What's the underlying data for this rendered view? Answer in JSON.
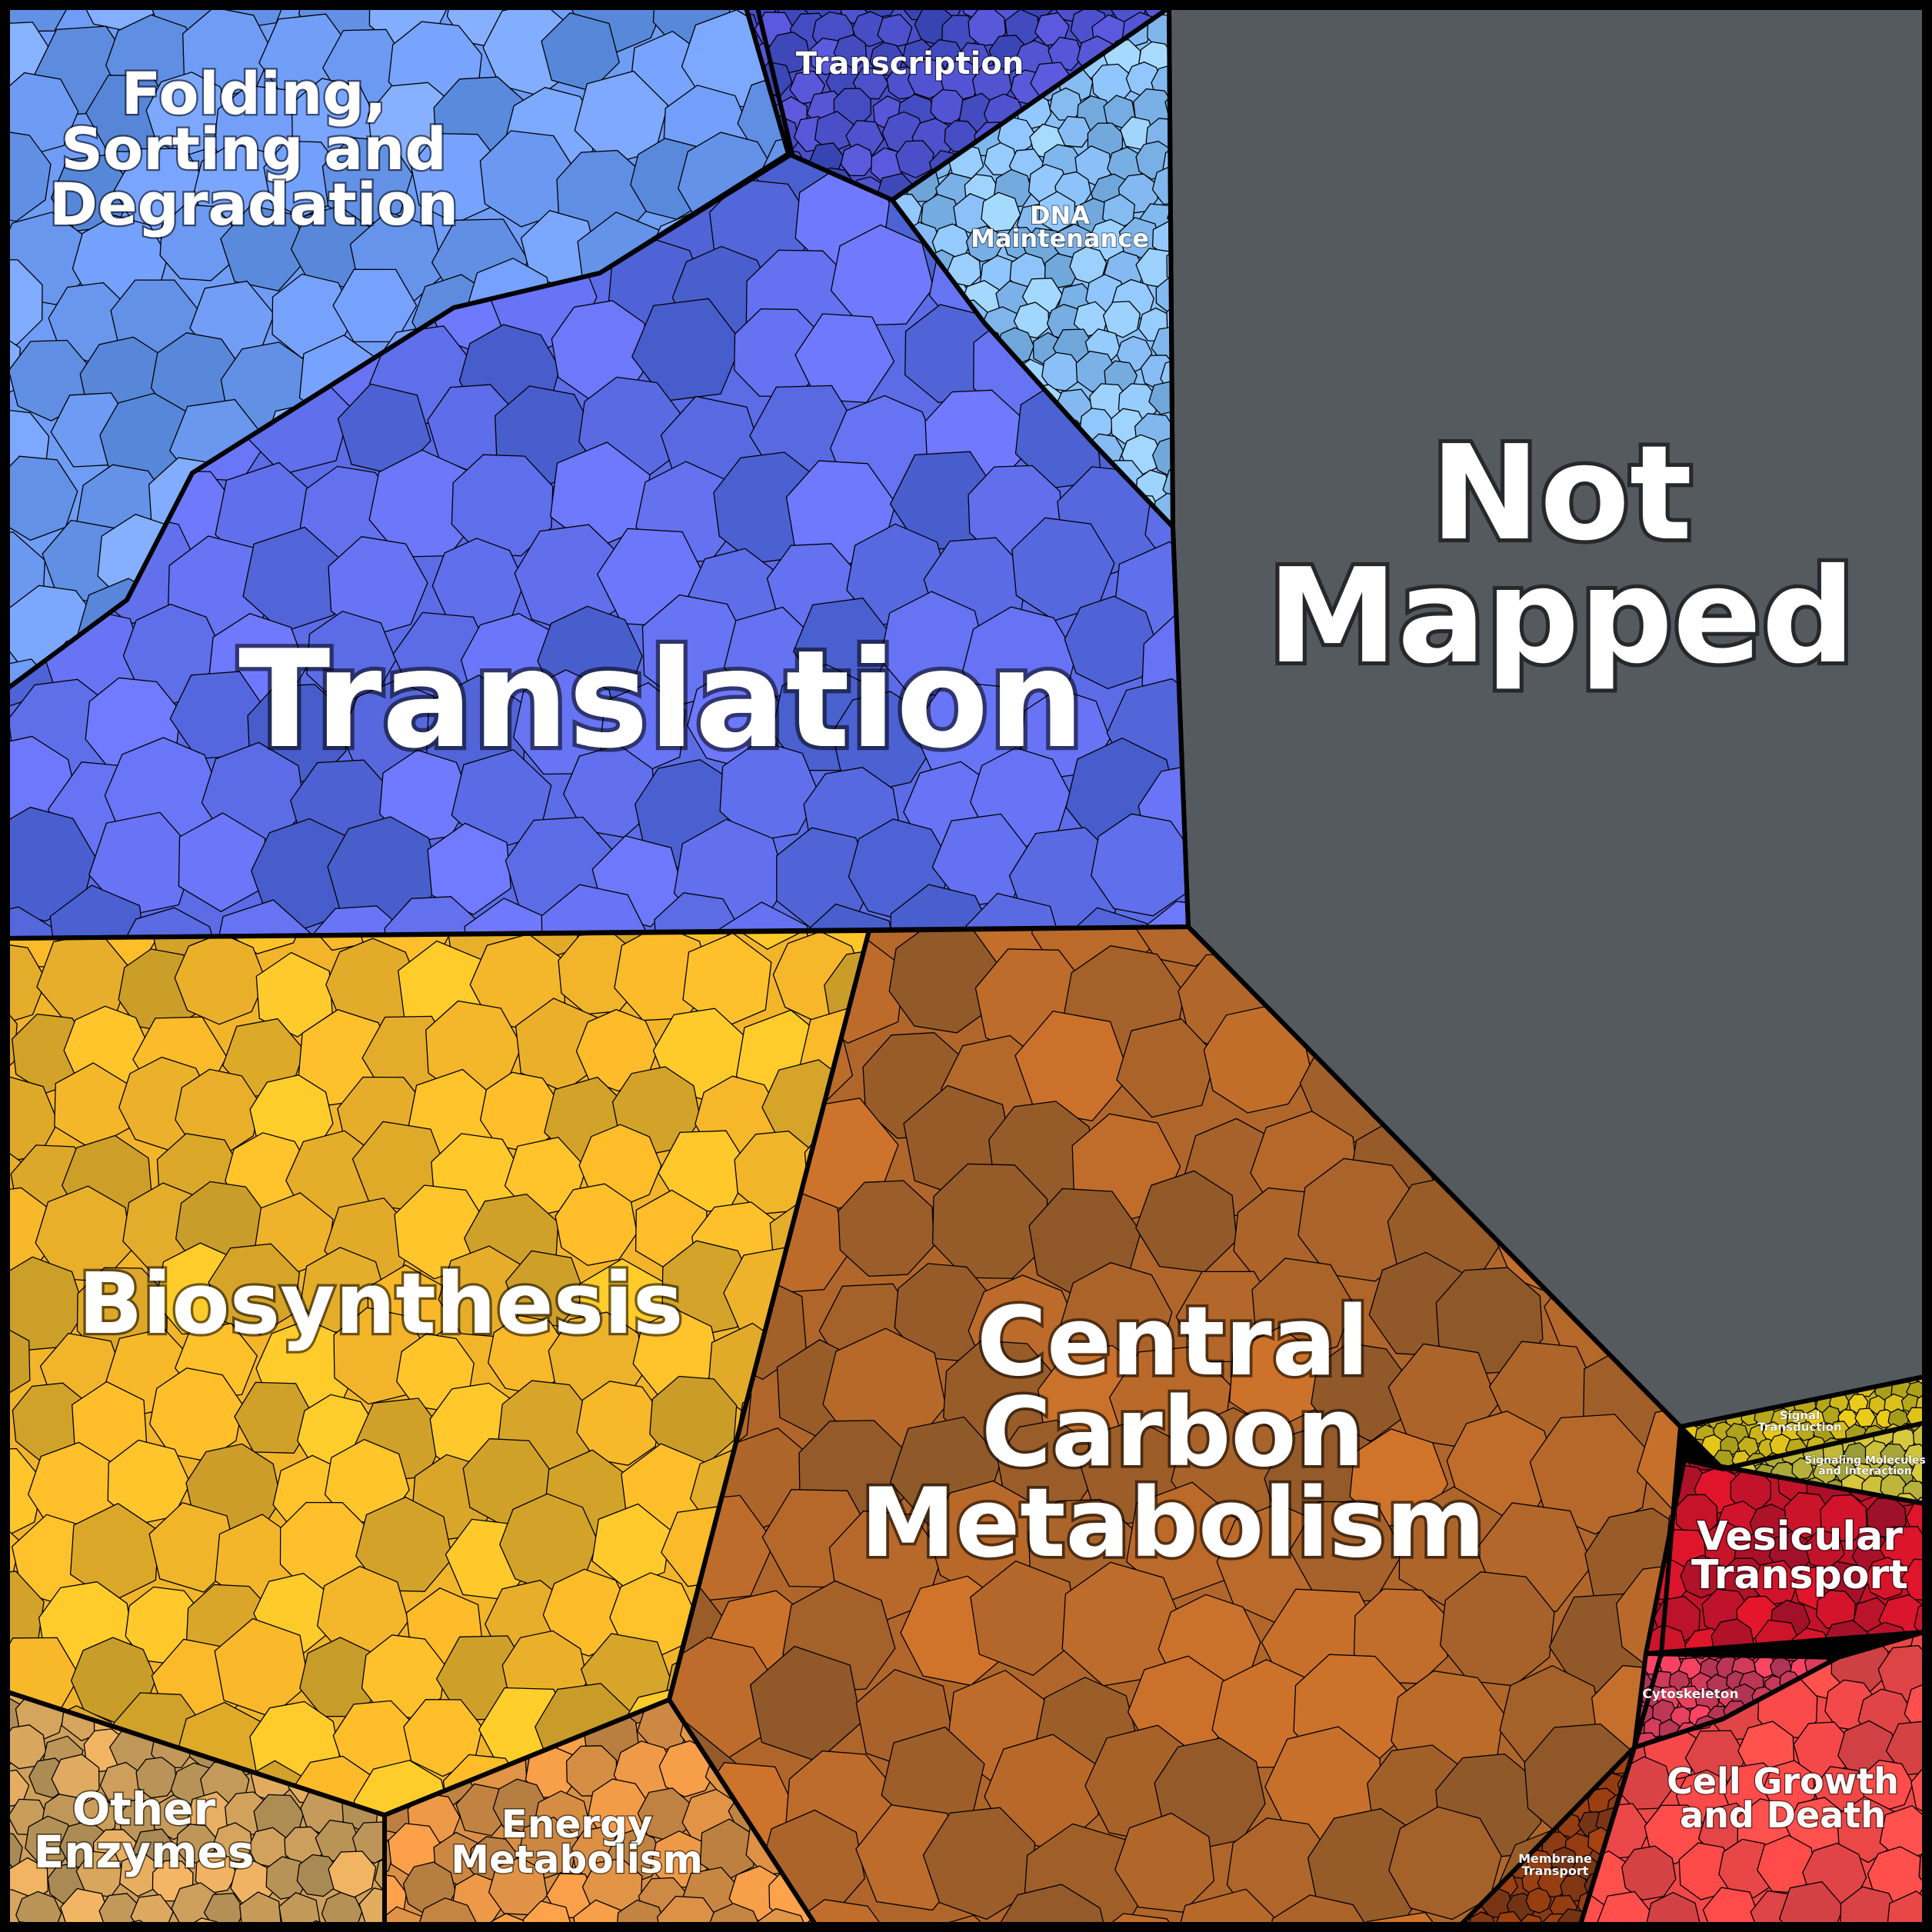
{
  "diagram": {
    "type": "voronoi-treemap",
    "categories": [
      {
        "id": "folding",
        "label": [
          "Folding,",
          "Sorting and",
          "Degradation"
        ],
        "color": "#6f9cf5"
      },
      {
        "id": "transcription",
        "label": [
          "Transcription"
        ],
        "color": "#4a4fc8"
      },
      {
        "id": "dna",
        "label": [
          "DNA",
          "Maintenance"
        ],
        "color": "#8ac0f7"
      },
      {
        "id": "translation",
        "label": [
          "Translation"
        ],
        "color": "#5c6ce6"
      },
      {
        "id": "notmapped",
        "label": [
          "Not",
          "Mapped"
        ],
        "color": "#555a5f"
      },
      {
        "id": "biosynthesis",
        "label": [
          "Biosynthesis"
        ],
        "color": "#f2b52a"
      },
      {
        "id": "central",
        "label": [
          "Central",
          "Carbon",
          "Metabolism"
        ],
        "color": "#b0662a"
      },
      {
        "id": "other",
        "label": [
          "Other",
          "Enzymes"
        ],
        "color": "#cfa05c"
      },
      {
        "id": "energy",
        "label": [
          "Energy",
          "Metabolism"
        ],
        "color": "#d98f45"
      },
      {
        "id": "signal",
        "label": [
          "Signal",
          "Transduction"
        ],
        "color": "#c9b41a"
      },
      {
        "id": "signaling",
        "label": [
          "Signaling Molecules",
          "and Interaction"
        ],
        "color": "#b8b23a"
      },
      {
        "id": "vesicular",
        "label": [
          "Vesicular",
          "Transport"
        ],
        "color": "#c0132a"
      },
      {
        "id": "cytoskeleton",
        "label": [
          "Cytoskeleton"
        ],
        "color": "#d83c5c"
      },
      {
        "id": "cellgrowth",
        "label": [
          "Cell Growth",
          "and Death"
        ],
        "color": "#f04848"
      },
      {
        "id": "membrane",
        "label": [
          "Membrane",
          "Transport"
        ],
        "color": "#8a3a12"
      }
    ]
  }
}
